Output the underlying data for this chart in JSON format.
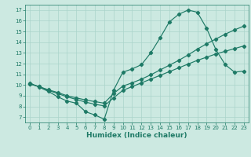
{
  "xlabel": "Humidex (Indice chaleur)",
  "xlim": [
    -0.5,
    23.5
  ],
  "ylim": [
    6.5,
    17.5
  ],
  "xticks": [
    0,
    1,
    2,
    3,
    4,
    5,
    6,
    7,
    8,
    9,
    10,
    11,
    12,
    13,
    14,
    15,
    16,
    17,
    18,
    19,
    20,
    21,
    22,
    23
  ],
  "yticks": [
    7,
    8,
    9,
    10,
    11,
    12,
    13,
    14,
    15,
    16,
    17
  ],
  "bg_color": "#cce9e1",
  "grid_color": "#aad4cb",
  "line_color": "#1e7a66",
  "curve1_x": [
    0,
    1,
    2,
    3,
    4,
    5,
    6,
    7,
    8,
    9,
    10,
    11,
    12,
    13,
    14,
    15,
    16,
    17,
    18,
    19,
    20,
    21,
    22,
    23
  ],
  "curve1_y": [
    10.2,
    9.8,
    9.4,
    8.9,
    8.5,
    8.3,
    7.5,
    7.2,
    6.8,
    9.5,
    11.2,
    11.5,
    11.9,
    13.0,
    14.4,
    15.9,
    16.6,
    17.0,
    16.8,
    15.3,
    13.3,
    11.9,
    11.2,
    11.3
  ],
  "curve2_x": [
    0,
    1,
    2,
    3,
    4,
    5,
    6,
    7,
    8,
    9,
    10,
    11,
    12,
    13,
    14,
    15,
    16,
    17,
    18,
    19,
    20,
    21,
    22,
    23
  ],
  "curve2_y": [
    10.1,
    9.85,
    9.55,
    9.3,
    9.0,
    8.8,
    8.6,
    8.45,
    8.3,
    9.2,
    9.9,
    10.2,
    10.55,
    10.95,
    11.4,
    11.85,
    12.3,
    12.8,
    13.35,
    13.85,
    14.3,
    14.75,
    15.15,
    15.5
  ],
  "curve3_x": [
    0,
    1,
    2,
    3,
    4,
    5,
    6,
    7,
    8,
    9,
    10,
    11,
    12,
    13,
    14,
    15,
    16,
    17,
    18,
    19,
    20,
    21,
    22,
    23
  ],
  "curve3_y": [
    10.1,
    9.85,
    9.5,
    9.2,
    8.9,
    8.65,
    8.4,
    8.2,
    8.05,
    8.8,
    9.5,
    9.85,
    10.2,
    10.55,
    10.9,
    11.25,
    11.6,
    11.95,
    12.3,
    12.6,
    12.9,
    13.15,
    13.4,
    13.65
  ],
  "marker": "D",
  "markersize": 2.2,
  "linewidth": 0.85,
  "label_fontsize": 6.5,
  "tick_fontsize": 5.0
}
